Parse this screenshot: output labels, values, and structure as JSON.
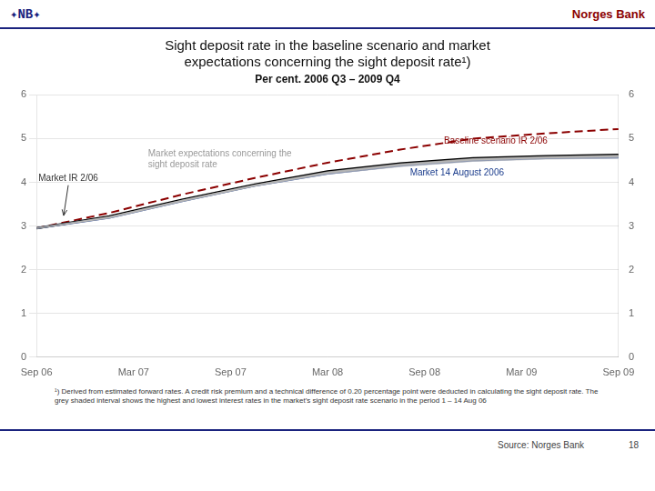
{
  "chart_data": {
    "type": "line",
    "header_logo": "✦NB✦",
    "header": "Norges Bank",
    "title": [
      "Sight deposit rate in the baseline scenario and market",
      "expectations concerning the sight deposit rate¹)"
    ],
    "subtitle": "Per cent. 2006 Q3 – 2009 Q4",
    "x": [
      0,
      0.75,
      1.5,
      2.25,
      3,
      3.75,
      4.5,
      5.25,
      6
    ],
    "xlim": [
      0,
      6
    ],
    "xticks": [
      {
        "value": 0,
        "label": "Sep 06"
      },
      {
        "value": 1,
        "label": "Mar 07"
      },
      {
        "value": 2,
        "label": "Sep 07"
      },
      {
        "value": 3,
        "label": "Mar 08"
      },
      {
        "value": 4,
        "label": "Sep 08"
      },
      {
        "value": 5,
        "label": "Mar 09"
      },
      {
        "value": 6,
        "label": "Sep 09"
      }
    ],
    "ylim": [
      0,
      6
    ],
    "yticks": [
      0,
      1,
      2,
      3,
      4,
      5,
      6
    ],
    "y2lim": [
      0,
      6
    ],
    "y2ticks": [
      0,
      1,
      2,
      3,
      4,
      5,
      6
    ],
    "grid": "y",
    "band": {
      "color": "#c0c0c0",
      "lower": [
        2.95,
        3.17,
        3.55,
        3.9,
        4.18,
        4.35,
        4.47,
        4.52,
        4.54
      ],
      "upper": [
        2.95,
        3.22,
        3.6,
        3.95,
        4.25,
        4.43,
        4.55,
        4.6,
        4.63
      ]
    },
    "series": [
      {
        "name": "Market expectations concerning the sight deposit rate",
        "color": "#999999",
        "line_style": "solid",
        "values": [
          2.95,
          3.2,
          3.58,
          3.93,
          4.22,
          4.4,
          4.52,
          4.57,
          4.6
        ]
      },
      {
        "name": "Market 14 August 2006",
        "color": "#1a3c8c",
        "line_style": "solid",
        "values": [
          2.95,
          3.19,
          3.57,
          3.92,
          4.2,
          4.38,
          4.5,
          4.55,
          4.57
        ]
      },
      {
        "name": "Market IR 2/06",
        "color": "#000000",
        "line_style": "solid",
        "values": [
          2.95,
          3.22,
          3.6,
          3.95,
          4.25,
          4.43,
          4.55,
          4.6,
          4.63
        ]
      },
      {
        "name": "Baseline scenario IR 2/06",
        "color": "#8B0000",
        "line_style": "dashed",
        "values": [
          2.95,
          3.3,
          3.72,
          4.1,
          4.45,
          4.75,
          5.0,
          5.12,
          5.22
        ]
      }
    ],
    "annotations": [
      {
        "text": "Baseline scenario IR 2/06",
        "x": 4.2,
        "y": 4.95,
        "color": "#8B0000"
      },
      {
        "text": "Market IR 2/06",
        "x": 0.02,
        "y": 4.08,
        "color": "#333333",
        "arrow": [
          0.28,
          3.24
        ]
      },
      {
        "text": "Market expectations concerning the\nsight deposit rate",
        "x": 1.15,
        "y": 4.52,
        "color": "#999999"
      },
      {
        "text": "Market 14 August 2006",
        "x": 3.85,
        "y": 4.22,
        "color": "#1a3c8c"
      }
    ],
    "footnote": "¹) Derived from estimated forward rates. A credit risk premium and a technical difference of 0.20 percentage point were deducted in calculating the sight deposit rate. The grey shaded interval shows the highest and lowest interest rates in the market’s sight deposit rate scenario in the period 1 – 14 Aug 06",
    "source": "Source: Norges Bank",
    "page_number": "18"
  }
}
